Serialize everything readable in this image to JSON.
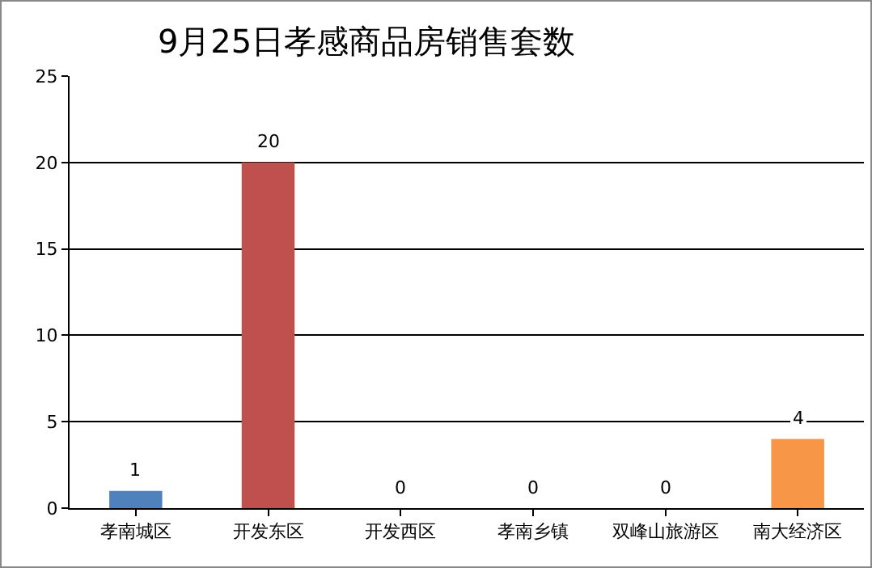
{
  "chart_data": {
    "type": "bar",
    "title": "9月25日孝感商品房销售套数",
    "categories": [
      "孝南城区",
      "开发东区",
      "开发西区",
      "孝南乡镇",
      "双峰山旅游区",
      "南大经济区"
    ],
    "values": [
      1,
      20,
      0,
      0,
      0,
      4
    ],
    "colors": [
      "#4f81bd",
      "#c0504d",
      "#9bbb59",
      "#8064a2",
      "#4bacc6",
      "#f79646"
    ],
    "ylim": [
      0,
      25
    ],
    "yticks": [
      0,
      5,
      10,
      15,
      20,
      25
    ],
    "grid": "y",
    "data_labels": true
  }
}
